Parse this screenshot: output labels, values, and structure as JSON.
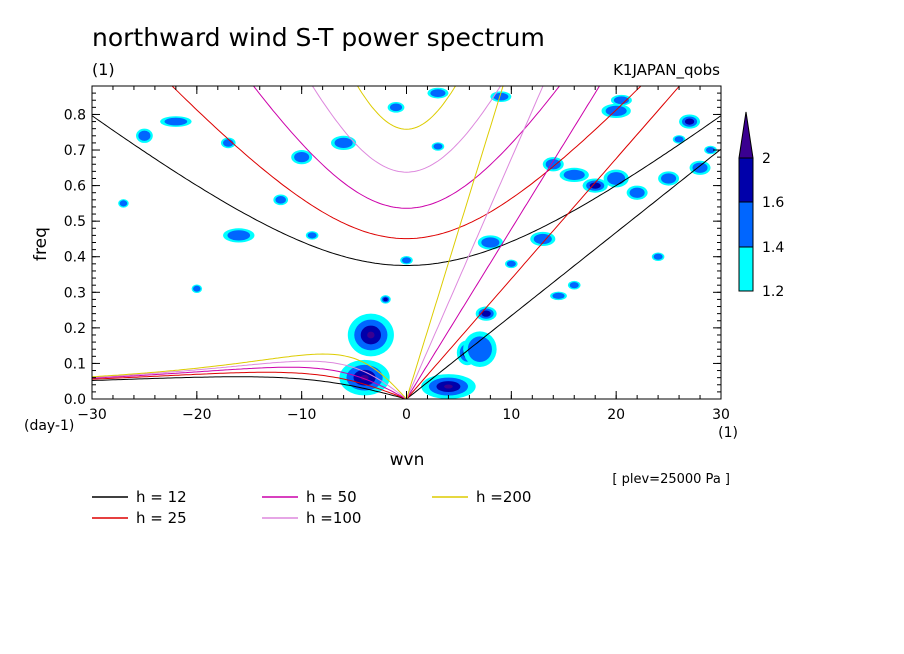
{
  "chart_data": {
    "type": "heatmap",
    "title": "northward wind S-T power spectrum",
    "subtitle_left": "(1)",
    "subtitle_right": "K1JAPAN_qobs",
    "xlabel": "wvn",
    "ylabel": "freq",
    "x_unit": "(1)",
    "y_unit": "(day-1)",
    "xlim": [
      -30,
      30
    ],
    "ylim": [
      0,
      0.88
    ],
    "x_ticks": [
      -30,
      -20,
      -10,
      0,
      10,
      20,
      30
    ],
    "x_tick_labels": [
      "−30",
      "−20",
      "−10",
      "0",
      "10",
      "20",
      "30"
    ],
    "y_ticks": [
      0.0,
      0.1,
      0.2,
      0.3,
      0.4,
      0.5,
      0.6,
      0.7,
      0.8
    ],
    "y_tick_labels": [
      "0.0",
      "0.1",
      "0.2",
      "0.3",
      "0.4",
      "0.5",
      "0.6",
      "0.7",
      "0.8"
    ],
    "plev_note": "[ plev=25000 Pa ]",
    "colorbar": {
      "levels": [
        1.2,
        1.4,
        1.6,
        2
      ],
      "level_labels": [
        "1.2",
        "1.4",
        "1.6",
        "2"
      ],
      "colors": [
        "#00ffff",
        "#0066ff",
        "#0000aa",
        "#3a0090"
      ]
    },
    "curves": [
      {
        "label": "h = 12",
        "h": 12,
        "color": "#000000"
      },
      {
        "label": "h = 25",
        "h": 25,
        "color": "#dd0000"
      },
      {
        "label": "h = 50",
        "h": 50,
        "color": "#cc00aa"
      },
      {
        "label": "h =100",
        "h": 100,
        "color": "#dd88dd"
      },
      {
        "label": "h =200",
        "h": 200,
        "color": "#ddcc00"
      }
    ],
    "spectral_blobs": [
      {
        "x": -3.4,
        "y": 0.18,
        "rx": 2.2,
        "ry": 0.06,
        "level": 3
      },
      {
        "x": -4.0,
        "y": 0.06,
        "rx": 2.4,
        "ry": 0.05,
        "level": 3
      },
      {
        "x": 4.0,
        "y": 0.035,
        "rx": 2.6,
        "ry": 0.035,
        "level": 3
      },
      {
        "x": 5.8,
        "y": 0.13,
        "rx": 1.0,
        "ry": 0.035,
        "level": 2
      },
      {
        "x": 7.6,
        "y": 0.24,
        "rx": 1.0,
        "ry": 0.02,
        "level": 2
      },
      {
        "x": 7.0,
        "y": 0.14,
        "rx": 1.6,
        "ry": 0.05,
        "level": 1
      },
      {
        "x": -25.0,
        "y": 0.74,
        "rx": 0.8,
        "ry": 0.02,
        "level": 1
      },
      {
        "x": -22.0,
        "y": 0.78,
        "rx": 1.5,
        "ry": 0.015,
        "level": 1
      },
      {
        "x": -16.0,
        "y": 0.46,
        "rx": 1.5,
        "ry": 0.02,
        "level": 1
      },
      {
        "x": -10.0,
        "y": 0.68,
        "rx": 1.0,
        "ry": 0.02,
        "level": 1
      },
      {
        "x": -6.0,
        "y": 0.72,
        "rx": 1.2,
        "ry": 0.02,
        "level": 1
      },
      {
        "x": -1.0,
        "y": 0.82,
        "rx": 0.8,
        "ry": 0.015,
        "level": 1
      },
      {
        "x": 3.0,
        "y": 0.86,
        "rx": 1.0,
        "ry": 0.015,
        "level": 1
      },
      {
        "x": 8.0,
        "y": 0.44,
        "rx": 1.2,
        "ry": 0.02,
        "level": 1
      },
      {
        "x": 9.0,
        "y": 0.85,
        "rx": 1.0,
        "ry": 0.015,
        "level": 1
      },
      {
        "x": 13.0,
        "y": 0.45,
        "rx": 1.2,
        "ry": 0.02,
        "level": 1
      },
      {
        "x": 14.0,
        "y": 0.66,
        "rx": 1.0,
        "ry": 0.02,
        "level": 1
      },
      {
        "x": 16.0,
        "y": 0.63,
        "rx": 1.4,
        "ry": 0.02,
        "level": 1
      },
      {
        "x": 18.0,
        "y": 0.6,
        "rx": 1.2,
        "ry": 0.02,
        "level": 2
      },
      {
        "x": 20.0,
        "y": 0.62,
        "rx": 1.2,
        "ry": 0.025,
        "level": 1
      },
      {
        "x": 20.0,
        "y": 0.81,
        "rx": 1.4,
        "ry": 0.02,
        "level": 1
      },
      {
        "x": 20.5,
        "y": 0.84,
        "rx": 1.0,
        "ry": 0.015,
        "level": 1
      },
      {
        "x": 22.0,
        "y": 0.58,
        "rx": 1.0,
        "ry": 0.02,
        "level": 1
      },
      {
        "x": 25.0,
        "y": 0.62,
        "rx": 1.0,
        "ry": 0.02,
        "level": 1
      },
      {
        "x": 27.0,
        "y": 0.78,
        "rx": 1.0,
        "ry": 0.02,
        "level": 2
      },
      {
        "x": 28.0,
        "y": 0.65,
        "rx": 1.0,
        "ry": 0.02,
        "level": 1
      },
      {
        "x": -27.0,
        "y": 0.55,
        "rx": 0.5,
        "ry": 0.012,
        "level": 1
      },
      {
        "x": -20.0,
        "y": 0.31,
        "rx": 0.5,
        "ry": 0.012,
        "level": 1
      },
      {
        "x": -17.0,
        "y": 0.72,
        "rx": 0.7,
        "ry": 0.015,
        "level": 1
      },
      {
        "x": -12.0,
        "y": 0.56,
        "rx": 0.7,
        "ry": 0.015,
        "level": 1
      },
      {
        "x": -9.0,
        "y": 0.46,
        "rx": 0.6,
        "ry": 0.012,
        "level": 1
      },
      {
        "x": -2.0,
        "y": 0.28,
        "rx": 0.5,
        "ry": 0.012,
        "level": 2
      },
      {
        "x": 0.0,
        "y": 0.39,
        "rx": 0.6,
        "ry": 0.012,
        "level": 1
      },
      {
        "x": 3.0,
        "y": 0.71,
        "rx": 0.6,
        "ry": 0.012,
        "level": 1
      },
      {
        "x": 10.0,
        "y": 0.38,
        "rx": 0.6,
        "ry": 0.012,
        "level": 1
      },
      {
        "x": 14.5,
        "y": 0.29,
        "rx": 0.8,
        "ry": 0.012,
        "level": 1
      },
      {
        "x": 16.0,
        "y": 0.32,
        "rx": 0.6,
        "ry": 0.012,
        "level": 1
      },
      {
        "x": 24.0,
        "y": 0.4,
        "rx": 0.6,
        "ry": 0.012,
        "level": 1
      },
      {
        "x": 26.0,
        "y": 0.73,
        "rx": 0.6,
        "ry": 0.012,
        "level": 1
      },
      {
        "x": 29.0,
        "y": 0.7,
        "rx": 0.6,
        "ry": 0.012,
        "level": 1
      }
    ]
  }
}
